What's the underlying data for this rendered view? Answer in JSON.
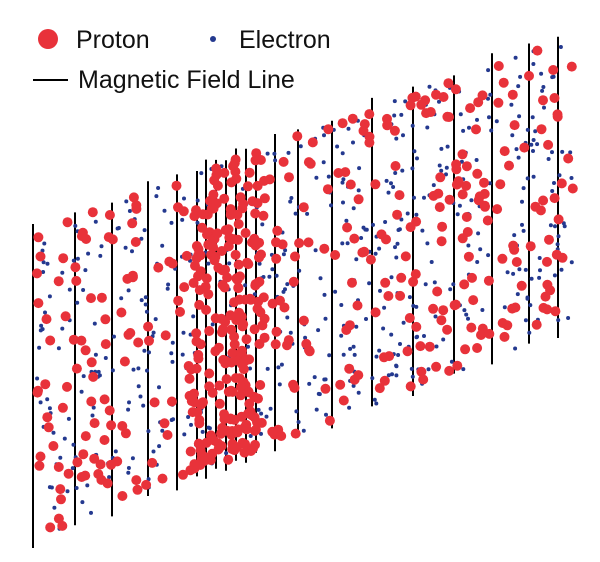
{
  "legend": {
    "proton_label": "Proton",
    "electron_label": "Electron",
    "field_line_label": "Magnetic Field Line"
  },
  "colors": {
    "proton": "#e8323a",
    "electron": "#24398f",
    "field_line": "#000000",
    "text": "#111111"
  }
}
